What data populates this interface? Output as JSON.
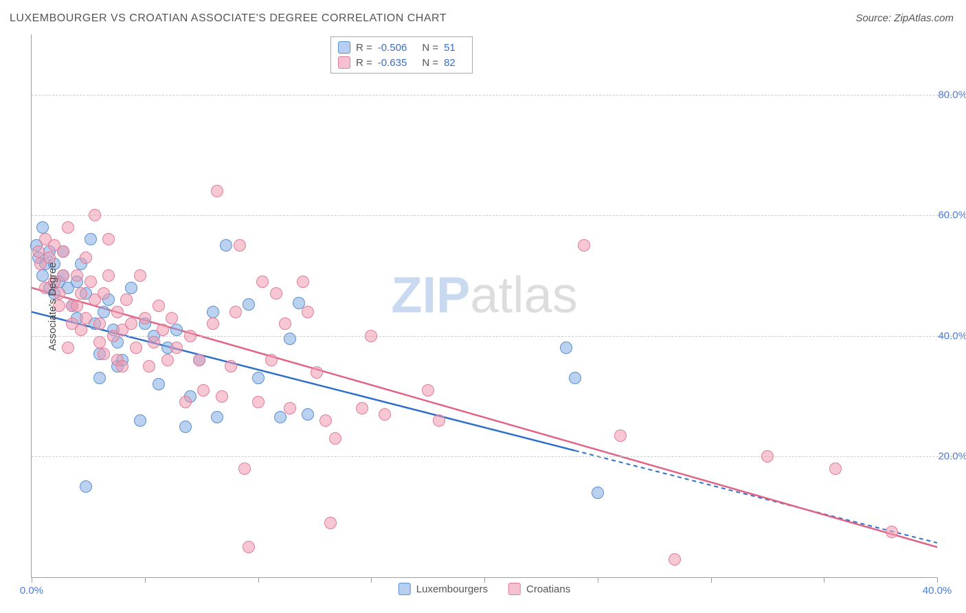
{
  "title": "LUXEMBOURGER VS CROATIAN ASSOCIATE'S DEGREE CORRELATION CHART",
  "source": "Source: ZipAtlas.com",
  "y_axis_label": "Associate's Degree",
  "x_range": [
    0,
    40
  ],
  "y_range": [
    0,
    90
  ],
  "x_ticks": [
    0,
    5,
    10,
    15,
    20,
    25,
    30,
    35,
    40
  ],
  "x_tick_labels": {
    "0": "0.0%",
    "40": "40.0%"
  },
  "y_ticks": [
    20,
    40,
    60,
    80
  ],
  "y_tick_labels": {
    "20": "20.0%",
    "40": "40.0%",
    "60": "60.0%",
    "80": "80.0%"
  },
  "grid_color": "#cccccc",
  "axis_color": "#9e9e9e",
  "tick_label_color": "#4a7bd4",
  "background_color": "#ffffff",
  "watermark": {
    "part1": "ZIP",
    "part2": "atlas",
    "color1": "#c9d9f0",
    "color2": "#dddddd",
    "fontsize": 74
  },
  "series": [
    {
      "key": "luxembourgers",
      "label": "Luxembourgers",
      "fill_color": "rgba(129,172,227,0.55)",
      "stroke_color": "#5a8fd0",
      "line_color": "#2f6fc9",
      "swatch_fill": "#b6cff0",
      "swatch_border": "#5a8fd0",
      "R": "-0.506",
      "N": "51",
      "trend": {
        "x1": 0,
        "y1": 44,
        "x2": 24,
        "y2": 21,
        "x_dash_end": 40,
        "y_dash_end": 5.7
      },
      "points": [
        [
          0.2,
          55
        ],
        [
          0.3,
          53
        ],
        [
          0.5,
          58
        ],
        [
          0.5,
          50
        ],
        [
          0.6,
          52
        ],
        [
          0.8,
          54
        ],
        [
          0.8,
          48
        ],
        [
          1.0,
          52
        ],
        [
          1.0,
          47
        ],
        [
          1.2,
          49
        ],
        [
          1.4,
          50
        ],
        [
          1.4,
          54
        ],
        [
          1.6,
          48
        ],
        [
          1.8,
          45
        ],
        [
          2.0,
          49
        ],
        [
          2.0,
          43
        ],
        [
          2.2,
          52
        ],
        [
          2.4,
          47
        ],
        [
          2.6,
          56
        ],
        [
          2.8,
          42
        ],
        [
          3.0,
          37
        ],
        [
          3.0,
          33
        ],
        [
          3.2,
          44
        ],
        [
          3.4,
          46
        ],
        [
          3.6,
          41
        ],
        [
          3.8,
          39
        ],
        [
          3.8,
          35
        ],
        [
          4.0,
          36
        ],
        [
          4.4,
          48
        ],
        [
          4.8,
          26
        ],
        [
          5.0,
          42
        ],
        [
          5.4,
          40
        ],
        [
          5.6,
          32
        ],
        [
          6.0,
          38
        ],
        [
          6.4,
          41
        ],
        [
          6.8,
          25
        ],
        [
          7.0,
          30
        ],
        [
          7.4,
          36
        ],
        [
          8.0,
          44
        ],
        [
          8.2,
          26.5
        ],
        [
          8.6,
          55
        ],
        [
          9.6,
          45.2
        ],
        [
          10.0,
          33
        ],
        [
          11.0,
          26.5
        ],
        [
          11.4,
          39.5
        ],
        [
          11.8,
          45.5
        ],
        [
          12.2,
          27
        ],
        [
          23.6,
          38
        ],
        [
          24.0,
          33
        ],
        [
          25.0,
          14
        ],
        [
          2.4,
          15
        ]
      ]
    },
    {
      "key": "croatians",
      "label": "Croatians",
      "fill_color": "rgba(240,154,176,0.55)",
      "stroke_color": "#e07b98",
      "line_color": "#e06284",
      "swatch_fill": "#f5c1d0",
      "swatch_border": "#e07b98",
      "R": "-0.635",
      "N": "82",
      "trend": {
        "x1": 0,
        "y1": 48,
        "x2": 40,
        "y2": 5
      },
      "points": [
        [
          0.3,
          54
        ],
        [
          0.4,
          52
        ],
        [
          0.6,
          56
        ],
        [
          0.6,
          48
        ],
        [
          0.8,
          53
        ],
        [
          1.0,
          49
        ],
        [
          1.0,
          55
        ],
        [
          1.2,
          47
        ],
        [
          1.2,
          45
        ],
        [
          1.4,
          54
        ],
        [
          1.4,
          50
        ],
        [
          1.6,
          58
        ],
        [
          1.6,
          38
        ],
        [
          1.8,
          45
        ],
        [
          1.8,
          42
        ],
        [
          2.0,
          50
        ],
        [
          2.0,
          45
        ],
        [
          2.2,
          47
        ],
        [
          2.2,
          41
        ],
        [
          2.4,
          43
        ],
        [
          2.4,
          53
        ],
        [
          2.6,
          49
        ],
        [
          2.8,
          60
        ],
        [
          2.8,
          46
        ],
        [
          3.0,
          39
        ],
        [
          3.0,
          42
        ],
        [
          3.2,
          47
        ],
        [
          3.2,
          37
        ],
        [
          3.4,
          50
        ],
        [
          3.4,
          56
        ],
        [
          3.6,
          40
        ],
        [
          3.8,
          44
        ],
        [
          3.8,
          36
        ],
        [
          4.0,
          41
        ],
        [
          4.0,
          35
        ],
        [
          4.2,
          46
        ],
        [
          4.4,
          42
        ],
        [
          4.6,
          38
        ],
        [
          4.8,
          50
        ],
        [
          5.0,
          43
        ],
        [
          5.2,
          35
        ],
        [
          5.4,
          39
        ],
        [
          5.6,
          45
        ],
        [
          5.8,
          41
        ],
        [
          6.0,
          36
        ],
        [
          6.2,
          43
        ],
        [
          6.4,
          38
        ],
        [
          6.8,
          29
        ],
        [
          7.0,
          40
        ],
        [
          7.4,
          36
        ],
        [
          7.6,
          31
        ],
        [
          8.0,
          42
        ],
        [
          8.2,
          64
        ],
        [
          8.4,
          30
        ],
        [
          8.8,
          35
        ],
        [
          9.0,
          44
        ],
        [
          9.2,
          55
        ],
        [
          9.4,
          18
        ],
        [
          9.6,
          5
        ],
        [
          10.0,
          29
        ],
        [
          10.2,
          49
        ],
        [
          10.6,
          36
        ],
        [
          10.8,
          47
        ],
        [
          11.2,
          42
        ],
        [
          11.4,
          28
        ],
        [
          12.0,
          49
        ],
        [
          12.2,
          44
        ],
        [
          12.6,
          34
        ],
        [
          13.0,
          26
        ],
        [
          13.2,
          9
        ],
        [
          13.4,
          23
        ],
        [
          14.6,
          28
        ],
        [
          15.0,
          40
        ],
        [
          15.6,
          27
        ],
        [
          17.5,
          31
        ],
        [
          18.0,
          26
        ],
        [
          24.4,
          55
        ],
        [
          26.0,
          23.5
        ],
        [
          28.4,
          3
        ],
        [
          32.5,
          20
        ],
        [
          35.5,
          18
        ],
        [
          38.0,
          7.5
        ]
      ]
    }
  ],
  "legend_top_labels": {
    "R": "R =",
    "N": "N ="
  },
  "legend_bottom_labels": [
    "Luxembourgers",
    "Croatians"
  ]
}
